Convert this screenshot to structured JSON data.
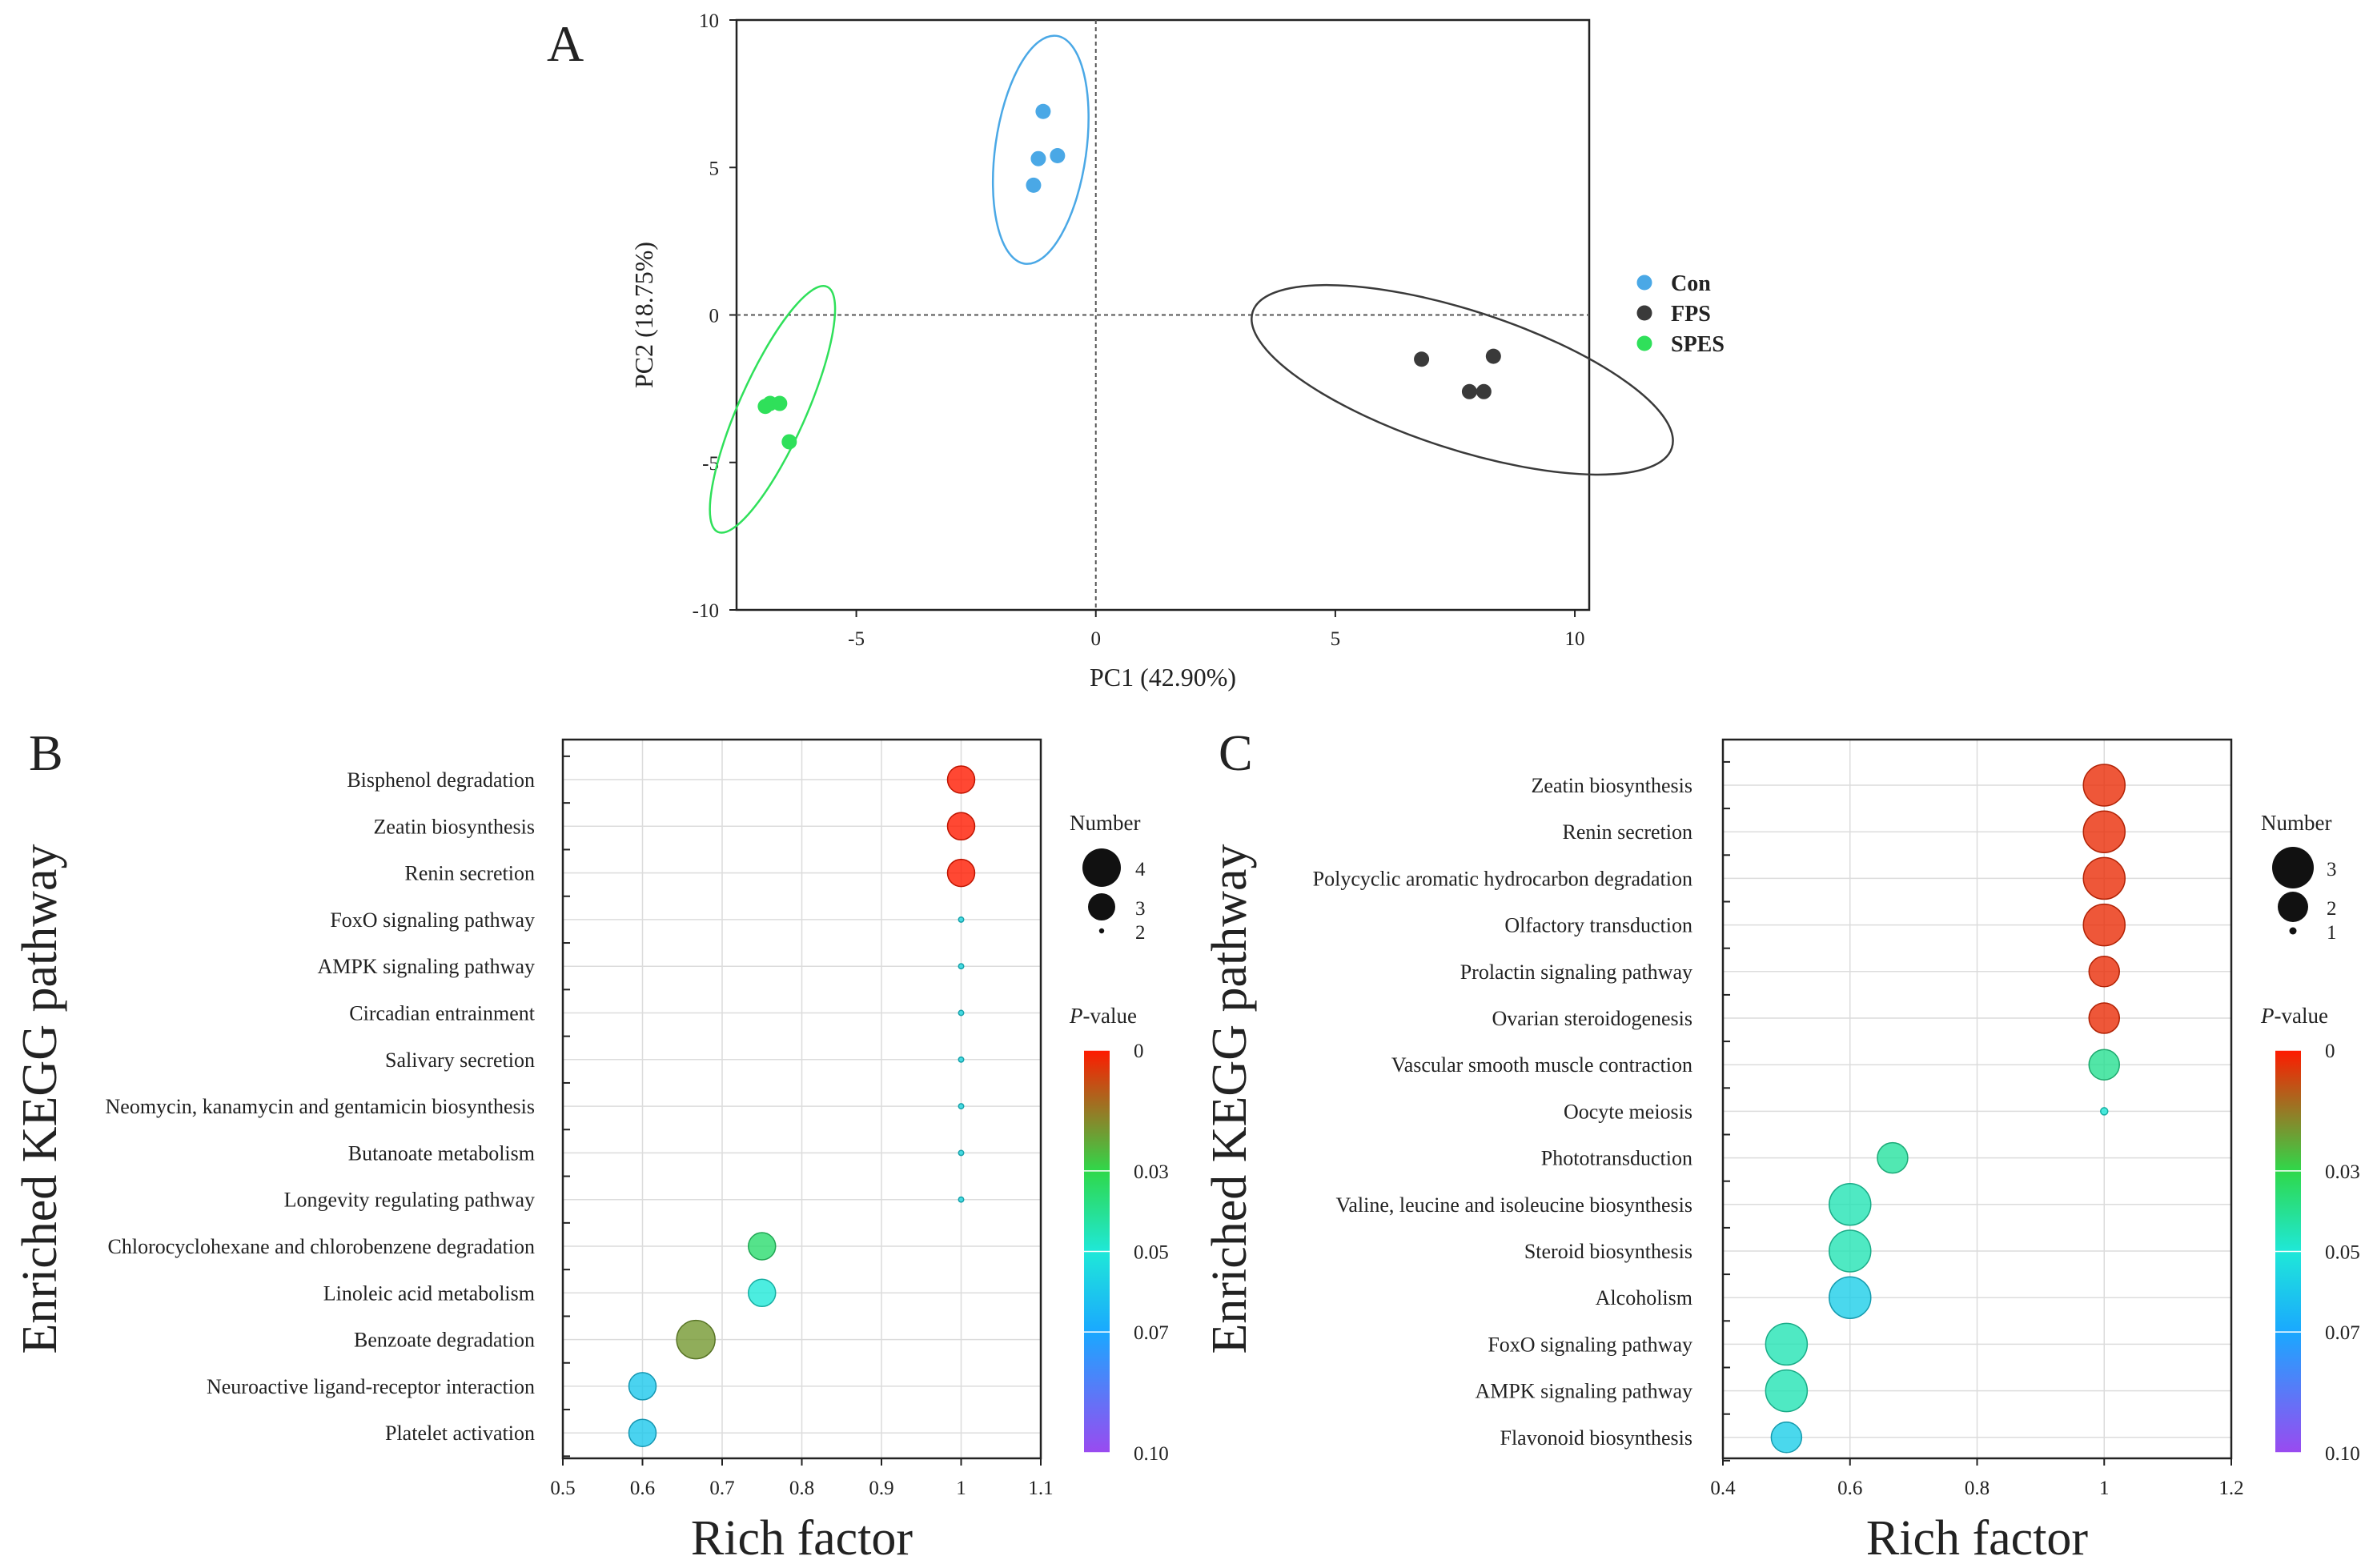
{
  "colors": {
    "Con": "#4aa8e6",
    "FPS": "#3a3a3a",
    "SPES": "#2fe05a",
    "grid": "#dcdcdc",
    "axis": "#222222"
  },
  "chart_data": [
    {
      "panel": "A",
      "type": "scatter",
      "title": "",
      "xlabel": "PC1 (42.90%)",
      "ylabel": "PC2 (18.75%)",
      "xlim": [
        -7.5,
        10.3
      ],
      "ylim": [
        -10,
        10
      ],
      "xticks": [
        -5,
        0,
        5,
        10
      ],
      "yticks": [
        -10,
        -5,
        0,
        5,
        10
      ],
      "grid": false,
      "legend": "right",
      "series": [
        {
          "name": "Con",
          "color": "#4aa8e6",
          "points": [
            [
              -1.1,
              6.9
            ],
            [
              -0.8,
              5.4
            ],
            [
              -1.2,
              5.3
            ],
            [
              -1.3,
              4.4
            ]
          ],
          "ellipse": {
            "cx": -1.15,
            "cy": 5.6,
            "rx": 0.95,
            "ry": 3.9,
            "angle": 8
          }
        },
        {
          "name": "FPS",
          "color": "#3a3a3a",
          "points": [
            [
              6.8,
              -1.5
            ],
            [
              8.3,
              -1.4
            ],
            [
              7.8,
              -2.6
            ],
            [
              8.1,
              -2.6
            ]
          ],
          "ellipse": {
            "cx": 7.65,
            "cy": -2.2,
            "rx": 4.6,
            "ry": 2.35,
            "angle": 18
          }
        },
        {
          "name": "SPES",
          "color": "#2fe05a",
          "points": [
            [
              -6.8,
              -3.0
            ],
            [
              -6.9,
              -3.1
            ],
            [
              -6.6,
              -3.0
            ],
            [
              -6.4,
              -4.3
            ]
          ],
          "ellipse": {
            "cx": -6.75,
            "cy": -3.2,
            "rx": 0.7,
            "ry": 4.55,
            "angle": 24
          }
        }
      ]
    },
    {
      "panel": "B",
      "type": "scatter",
      "title": "",
      "xlabel": "Rich factor",
      "ylabel": "Enriched KEGG pathway",
      "xlim": [
        0.5,
        1.1
      ],
      "xticks": [
        "0.5",
        "0.6",
        "0.7",
        "0.8",
        "0.9",
        "1",
        "1.1"
      ],
      "grid": true,
      "size_legend_title": "Number",
      "size_legend": [
        4,
        3,
        2
      ],
      "color_legend_title": "P-value",
      "color_legend_ticks": [
        "0",
        "0.03",
        "0.05",
        "0.07",
        "0.10"
      ],
      "pathways": [
        {
          "name": "Bisphenol degradation",
          "rich": 1.0,
          "number": 3.3,
          "p": 0.0
        },
        {
          "name": "Zeatin biosynthesis",
          "rich": 1.0,
          "number": 3.3,
          "p": 0.0
        },
        {
          "name": "Renin secretion",
          "rich": 1.0,
          "number": 3.3,
          "p": 0.0
        },
        {
          "name": "FoxO signaling pathway",
          "rich": 1.0,
          "number": 2.1,
          "p": 0.055
        },
        {
          "name": "AMPK signaling pathway",
          "rich": 1.0,
          "number": 2.1,
          "p": 0.055
        },
        {
          "name": "Circadian entrainment",
          "rich": 1.0,
          "number": 2.1,
          "p": 0.055
        },
        {
          "name": "Salivary secretion",
          "rich": 1.0,
          "number": 2.1,
          "p": 0.055
        },
        {
          "name": "Neomycin, kanamycin and gentamicin biosynthesis",
          "rich": 1.0,
          "number": 2.1,
          "p": 0.055
        },
        {
          "name": "Butanoate metabolism",
          "rich": 1.0,
          "number": 2.1,
          "p": 0.055
        },
        {
          "name": "Longevity regulating pathway",
          "rich": 1.0,
          "number": 2.1,
          "p": 0.055
        },
        {
          "name": "Chlorocyclohexane and chlorobenzene degradation",
          "rich": 0.75,
          "number": 3.3,
          "p": 0.035
        },
        {
          "name": "Linoleic acid metabolism",
          "rich": 0.75,
          "number": 3.3,
          "p": 0.05
        },
        {
          "name": "Benzoate degradation",
          "rich": 0.667,
          "number": 4.0,
          "p": 0.02
        },
        {
          "name": "Neuroactive ligand-receptor interaction",
          "rich": 0.6,
          "number": 3.3,
          "p": 0.06
        },
        {
          "name": "Platelet activation",
          "rich": 0.6,
          "number": 3.3,
          "p": 0.06
        }
      ]
    },
    {
      "panel": "C",
      "type": "scatter",
      "title": "",
      "xlabel": "Rich factor",
      "ylabel": "Enriched KEGG pathway",
      "xlim": [
        0.4,
        1.2
      ],
      "xticks": [
        "0.4",
        "0.6",
        "0.8",
        "1",
        "1.2"
      ],
      "grid": true,
      "size_legend_title": "Number",
      "size_legend": [
        3,
        2,
        1
      ],
      "color_legend_title": "P-value",
      "color_legend_ticks": [
        "0",
        "0.03",
        "0.05",
        "0.07",
        "0.10"
      ],
      "pathways": [
        {
          "name": "Zeatin biosynthesis",
          "rich": 1.0,
          "number": 3.0,
          "p": 0.003
        },
        {
          "name": "Renin secretion",
          "rich": 1.0,
          "number": 3.0,
          "p": 0.003
        },
        {
          "name": "Polycyclic aromatic hydrocarbon degradation",
          "rich": 1.0,
          "number": 3.0,
          "p": 0.003
        },
        {
          "name": "Olfactory transduction",
          "rich": 1.0,
          "number": 3.0,
          "p": 0.003
        },
        {
          "name": "Prolactin signaling pathway",
          "rich": 1.0,
          "number": 2.2,
          "p": 0.003
        },
        {
          "name": "Ovarian steroidogenesis",
          "rich": 1.0,
          "number": 2.2,
          "p": 0.003
        },
        {
          "name": "Vascular smooth muscle contraction",
          "rich": 1.0,
          "number": 2.2,
          "p": 0.04
        },
        {
          "name": "Oocyte meiosis",
          "rich": 1.0,
          "number": 1.0,
          "p": 0.05
        },
        {
          "name": "Phototransduction",
          "rich": 0.667,
          "number": 2.2,
          "p": 0.042
        },
        {
          "name": "Valine, leucine and isoleucine biosynthesis",
          "rich": 0.6,
          "number": 3.0,
          "p": 0.045
        },
        {
          "name": "Steroid biosynthesis",
          "rich": 0.6,
          "number": 3.0,
          "p": 0.045
        },
        {
          "name": "Alcoholism",
          "rich": 0.6,
          "number": 3.0,
          "p": 0.058
        },
        {
          "name": "FoxO signaling pathway",
          "rich": 0.5,
          "number": 3.0,
          "p": 0.045
        },
        {
          "name": "AMPK signaling pathway",
          "rich": 0.5,
          "number": 3.0,
          "p": 0.045
        },
        {
          "name": "Flavonoid biosynthesis",
          "rich": 0.5,
          "number": 2.2,
          "p": 0.058
        }
      ]
    }
  ]
}
